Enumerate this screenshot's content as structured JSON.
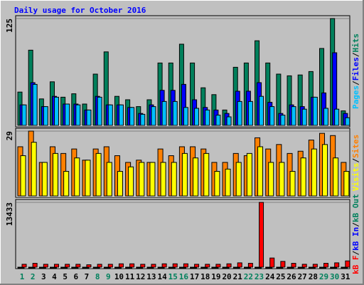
{
  "chart_data": [
    {
      "type": "bar",
      "title": "Daily usage for October 2016",
      "legend_separator": "/",
      "ylim": [
        0,
        125
      ],
      "yticks": [
        125
      ],
      "series": [
        {
          "name": "Pages",
          "color": "#00c0ff",
          "values": [
            24,
            48,
            22,
            33,
            25,
            24,
            18,
            33,
            24,
            24,
            21,
            13,
            22,
            28,
            28,
            21,
            20,
            18,
            12,
            10,
            28,
            28,
            34,
            22,
            12,
            22,
            19,
            33,
            20,
            19,
            9
          ]
        },
        {
          "name": "Files",
          "color": "#0000ff",
          "values": [
            24,
            50,
            22,
            34,
            25,
            25,
            18,
            34,
            24,
            24,
            21,
            14,
            24,
            41,
            41,
            48,
            30,
            21,
            18,
            14,
            40,
            40,
            50,
            27,
            14,
            24,
            22,
            33,
            38,
            85,
            14
          ]
        },
        {
          "name": "Hits",
          "color": "#00805c",
          "values": [
            39,
            88,
            31,
            51,
            33,
            37,
            25,
            60,
            86,
            34,
            30,
            22,
            30,
            73,
            73,
            95,
            73,
            44,
            36,
            18,
            68,
            73,
            99,
            73,
            60,
            58,
            59,
            63,
            90,
            125,
            17
          ]
        }
      ]
    },
    {
      "type": "bar",
      "legend_separator": "/",
      "ylim": [
        0,
        29
      ],
      "yticks": [
        29
      ],
      "series": [
        {
          "name": "Visits",
          "color": "#ffff00",
          "values": [
            18,
            24,
            15,
            19,
            11,
            17,
            16,
            19,
            15,
            11,
            13,
            15,
            15,
            15,
            15,
            19,
            17,
            19,
            11,
            12,
            15,
            19,
            22,
            15,
            15,
            11,
            17,
            21,
            23,
            17,
            11
          ]
        },
        {
          "name": "Sites",
          "color": "#ff8000",
          "values": [
            22,
            29,
            15,
            22,
            19,
            21,
            16,
            21,
            22,
            18,
            15,
            16,
            15,
            21,
            18,
            22,
            22,
            21,
            15,
            15,
            19,
            18,
            26,
            21,
            23,
            19,
            20,
            25,
            28,
            27,
            15
          ]
        }
      ]
    },
    {
      "type": "bar",
      "legend_separator": "/",
      "ylim": [
        0,
        13433
      ],
      "yticks": [
        13433
      ],
      "categories": [
        "1",
        "2",
        "3",
        "4",
        "5",
        "6",
        "7",
        "8",
        "9",
        "10",
        "11",
        "12",
        "13",
        "14",
        "15",
        "16",
        "17",
        "18",
        "19",
        "20",
        "21",
        "22",
        "23",
        "24",
        "25",
        "26",
        "27",
        "28",
        "29",
        "30",
        "31"
      ],
      "category_colors": [
        "#00805c",
        "#00805c",
        "#000000",
        "#000000",
        "#000000",
        "#000000",
        "#000000",
        "#00805c",
        "#00805c",
        "#000000",
        "#000000",
        "#000000",
        "#000000",
        "#000000",
        "#00805c",
        "#00805c",
        "#000000",
        "#000000",
        "#000000",
        "#000000",
        "#000000",
        "#00805c",
        "#00805c",
        "#000000",
        "#000000",
        "#000000",
        "#000000",
        "#000000",
        "#00805c",
        "#00805c",
        "#000000"
      ],
      "series": [
        {
          "name": "kB F",
          "color": "#ff0000",
          "values": [
            600,
            800,
            600,
            600,
            600,
            600,
            500,
            600,
            600,
            700,
            700,
            600,
            600,
            700,
            700,
            700,
            600,
            600,
            600,
            700,
            900,
            800,
            13433,
            1900,
            1200,
            800,
            600,
            600,
            800,
            900,
            1300
          ]
        },
        {
          "name": "kB In",
          "color": "#0000ff",
          "values": [
            0,
            0,
            0,
            0,
            0,
            0,
            0,
            0,
            0,
            0,
            0,
            0,
            0,
            0,
            0,
            0,
            0,
            0,
            0,
            0,
            0,
            0,
            0,
            0,
            0,
            0,
            0,
            0,
            0,
            0,
            0
          ]
        },
        {
          "name": "kB Out",
          "color": "#00805c",
          "values": [
            0,
            0,
            0,
            0,
            0,
            0,
            0,
            0,
            0,
            0,
            0,
            0,
            0,
            0,
            0,
            0,
            0,
            0,
            0,
            0,
            0,
            0,
            0,
            0,
            0,
            0,
            0,
            0,
            0,
            0,
            0
          ]
        }
      ]
    }
  ]
}
